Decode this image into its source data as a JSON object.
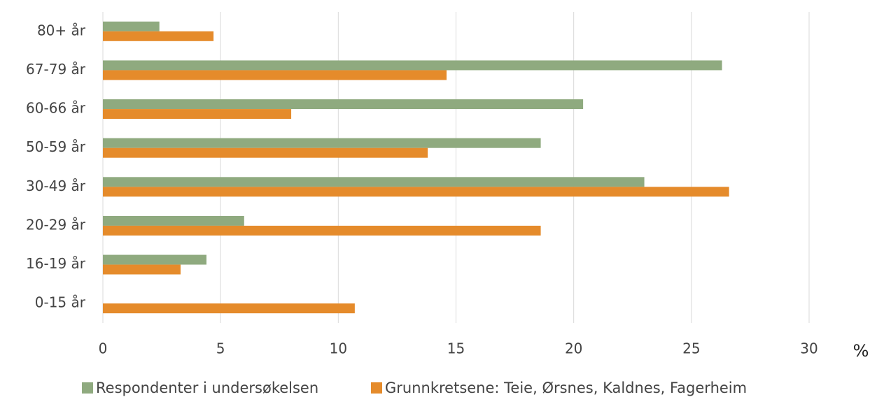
{
  "chart_data": {
    "type": "bar",
    "orientation": "horizontal",
    "categories": [
      "80+ år",
      "67-79 år",
      "60-66 år",
      "50-59 år",
      "30-49 år",
      "20-29 år",
      "16-19 år",
      "0-15 år"
    ],
    "series": [
      {
        "name": "Respondenter i undersøkelsen",
        "color": "#8faa7f",
        "values": [
          2.4,
          26.3,
          20.4,
          18.6,
          23.0,
          6.0,
          4.4,
          0
        ]
      },
      {
        "name": "Grunnkretsene: Teie, Ørsnes, Kaldnes, Fagerheim",
        "color": "#e58b2b",
        "values": [
          4.7,
          14.6,
          8.0,
          13.8,
          26.6,
          18.6,
          3.3,
          10.7
        ]
      }
    ],
    "x_label": "%",
    "xlim": [
      0,
      30
    ],
    "xticks": [
      0,
      5,
      10,
      15,
      20,
      25,
      30
    ],
    "grid": true,
    "legend": "bottom"
  }
}
